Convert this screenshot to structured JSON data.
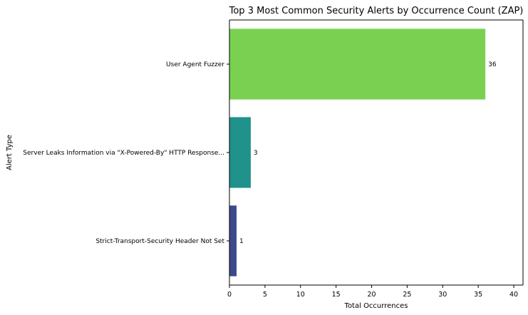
{
  "chart_data": {
    "type": "bar",
    "orientation": "horizontal",
    "title": "Top 3 Most Common Security Alerts by Occurrence Count (ZAP)",
    "xlabel": "Total Occurrences",
    "ylabel": "Alert Type",
    "categories": [
      "User Agent Fuzzer",
      "Server Leaks Information via \"X-Powered-By\" HTTP Response...",
      "Strict-Transport-Security Header Not Set"
    ],
    "values": [
      36,
      3,
      1
    ],
    "data_labels": [
      "36",
      "3",
      "1"
    ],
    "colors": [
      "#7ad151",
      "#21918c",
      "#3b4a8c"
    ],
    "xlim": [
      0,
      41.3
    ],
    "xticks": [
      0,
      5,
      10,
      15,
      20,
      25,
      30,
      35,
      40
    ],
    "grid": false,
    "legend": "none"
  }
}
